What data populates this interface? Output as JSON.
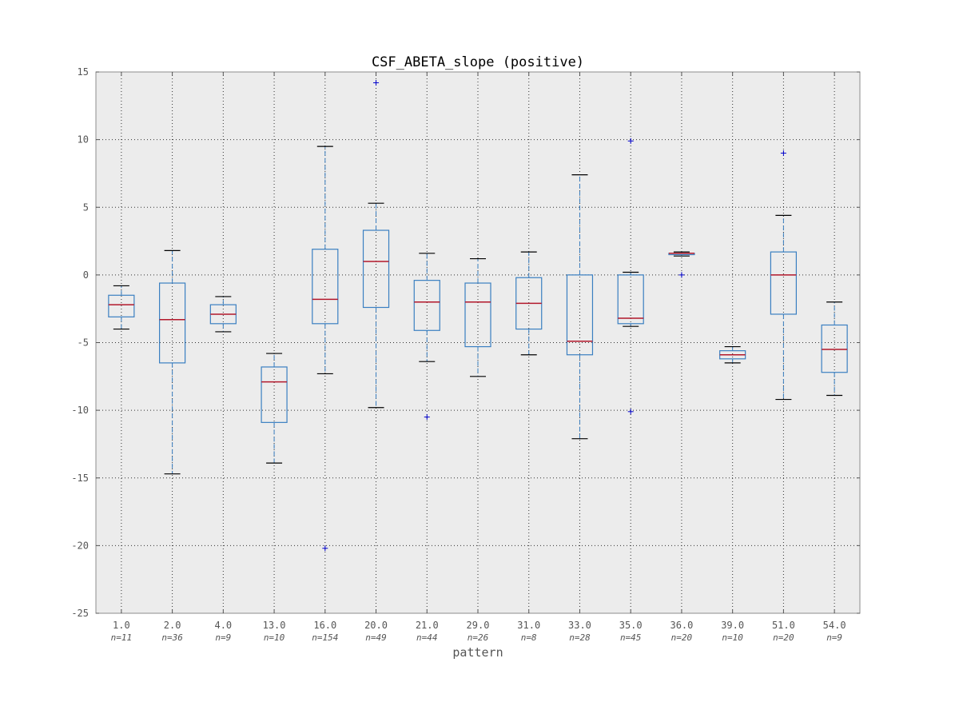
{
  "chart_data": {
    "type": "box",
    "title": "CSF_ABETA_slope (positive)",
    "xlabel": "pattern",
    "ylabel": "",
    "ylim": [
      -25,
      15
    ],
    "yticks": [
      15,
      10,
      5,
      0,
      -5,
      -10,
      -15,
      -20,
      -25
    ],
    "grid": true,
    "colors": {
      "plot_background": "#ececec",
      "box": "#3a7fc1",
      "median": "#b2182b",
      "whisker": "#3a7fc1",
      "cap": "#000000",
      "flier": "#0000cc",
      "grid": "#333333"
    },
    "categories": [
      "1.0",
      "2.0",
      "4.0",
      "13.0",
      "16.0",
      "20.0",
      "21.0",
      "29.0",
      "31.0",
      "33.0",
      "35.0",
      "36.0",
      "39.0",
      "51.0",
      "54.0"
    ],
    "counts": [
      "n=11",
      "n=36",
      "n=9",
      "n=10",
      "n=154",
      "n=49",
      "n=44",
      "n=26",
      "n=8",
      "n=28",
      "n=45",
      "n=20",
      "n=10",
      "n=20",
      "n=9"
    ],
    "boxes": [
      {
        "whislo": -4.0,
        "q1": -3.1,
        "med": -2.2,
        "q3": -1.5,
        "whishi": -0.8,
        "fliers": []
      },
      {
        "whislo": -14.7,
        "q1": -6.5,
        "med": -3.3,
        "q3": -0.6,
        "whishi": 1.8,
        "fliers": []
      },
      {
        "whislo": -4.2,
        "q1": -3.6,
        "med": -2.9,
        "q3": -2.2,
        "whishi": -1.6,
        "fliers": []
      },
      {
        "whislo": -13.9,
        "q1": -10.9,
        "med": -7.9,
        "q3": -6.8,
        "whishi": -5.8,
        "fliers": []
      },
      {
        "whislo": -7.3,
        "q1": -3.6,
        "med": -1.8,
        "q3": 1.9,
        "whishi": 9.5,
        "fliers": [
          -20.2
        ]
      },
      {
        "whislo": -9.8,
        "q1": -2.4,
        "med": 1.0,
        "q3": 3.3,
        "whishi": 5.3,
        "fliers": [
          14.2
        ]
      },
      {
        "whislo": -6.4,
        "q1": -4.1,
        "med": -2.0,
        "q3": -0.4,
        "whishi": 1.6,
        "fliers": [
          -10.5
        ]
      },
      {
        "whislo": -7.5,
        "q1": -5.3,
        "med": -2.0,
        "q3": -0.6,
        "whishi": 1.2,
        "fliers": []
      },
      {
        "whislo": -5.9,
        "q1": -4.0,
        "med": -2.1,
        "q3": -0.2,
        "whishi": 1.7,
        "fliers": []
      },
      {
        "whislo": -12.1,
        "q1": -5.9,
        "med": -4.9,
        "q3": 0.0,
        "whishi": 7.4,
        "fliers": []
      },
      {
        "whislo": -3.8,
        "q1": -3.6,
        "med": -3.2,
        "q3": 0.0,
        "whishi": 0.2,
        "fliers": [
          9.9,
          -10.1
        ]
      },
      {
        "whislo": 1.4,
        "q1": 1.5,
        "med": 1.6,
        "q3": 1.6,
        "whishi": 1.7,
        "fliers": [
          0.0
        ]
      },
      {
        "whislo": -6.5,
        "q1": -6.2,
        "med": -5.9,
        "q3": -5.6,
        "whishi": -5.3,
        "fliers": []
      },
      {
        "whislo": -9.2,
        "q1": -2.9,
        "med": 0.0,
        "q3": 1.7,
        "whishi": 4.4,
        "fliers": [
          9.0
        ]
      },
      {
        "whislo": -8.9,
        "q1": -7.2,
        "med": -5.5,
        "q3": -3.7,
        "whishi": -2.0,
        "fliers": []
      }
    ]
  }
}
